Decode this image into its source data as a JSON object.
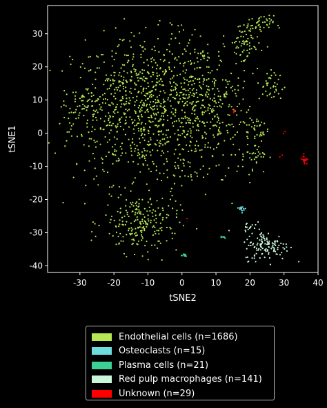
{
  "chart_data": {
    "type": "scatter",
    "xlabel": "tSNE2",
    "ylabel": "tSNE1",
    "xlim": [
      -39.5,
      40
    ],
    "ylim": [
      -42,
      38.5
    ],
    "xticks": [
      -30,
      -20,
      -10,
      0,
      10,
      20,
      30,
      40
    ],
    "yticks": [
      30,
      20,
      10,
      0,
      -10,
      -20,
      -30,
      -40
    ],
    "legend_position": "below",
    "series": [
      {
        "name": "Endothelial cells (n=1686)",
        "color": "#b5e853",
        "clusters": [
          {
            "cx": -10,
            "cy": 7,
            "sx": 11,
            "sy": 11,
            "n": 900
          },
          {
            "cx": -27,
            "cy": 8,
            "sx": 4,
            "sy": 4,
            "n": 80
          },
          {
            "cx": 5,
            "cy": 12,
            "sx": 5,
            "sy": 8,
            "n": 150
          },
          {
            "cx": 12,
            "cy": 5,
            "sx": 4,
            "sy": 8,
            "n": 100
          },
          {
            "cx": -12,
            "cy": -27,
            "sx": 5.5,
            "sy": 4.5,
            "n": 220
          },
          {
            "cx": 18,
            "cy": 27,
            "sx": 2.5,
            "sy": 3.5,
            "n": 70
          },
          {
            "cx": 23,
            "cy": 33,
            "sx": 2,
            "sy": 1.2,
            "n": 40
          },
          {
            "cx": 26,
            "cy": 14,
            "sx": 2,
            "sy": 2.5,
            "n": 40
          },
          {
            "cx": 21,
            "cy": -6,
            "sx": 2.2,
            "sy": 3,
            "n": 40
          },
          {
            "cx": 22,
            "cy": 1,
            "sx": 1.8,
            "sy": 2,
            "n": 30
          },
          {
            "cx": 3,
            "cy": -8,
            "sx": 4,
            "sy": 5,
            "n": 16
          }
        ]
      },
      {
        "name": "Osteoclasts (n=15)",
        "color": "#6edbdd",
        "clusters": [
          {
            "cx": 18,
            "cy": -22.8,
            "sx": 0.6,
            "sy": 0.5,
            "n": 15
          }
        ]
      },
      {
        "name": "Plasma cells (n=21)",
        "color": "#3dd094",
        "clusters": [
          {
            "cx": 0.5,
            "cy": -36.8,
            "sx": 0.6,
            "sy": 0.3,
            "n": 13
          },
          {
            "cx": 12,
            "cy": -31.3,
            "sx": 0.6,
            "sy": 0.2,
            "n": 8
          }
        ]
      },
      {
        "name": "Red pulp macrophages (n=141)",
        "color": "#cbf7d9",
        "clusters": [
          {
            "cx": 25,
            "cy": -34,
            "sx": 3.3,
            "sy": 2.2,
            "n": 125
          },
          {
            "cx": 20,
            "cy": -28,
            "sx": 1,
            "sy": 1.2,
            "n": 16
          }
        ]
      },
      {
        "name": "Unknown (n=29)",
        "color": "#ff0000",
        "clusters": [
          {
            "cx": 36,
            "cy": -8,
            "sx": 0.4,
            "sy": 0.7,
            "n": 20
          },
          {
            "cx": 15.5,
            "cy": 7,
            "sx": 0.5,
            "sy": 0.3,
            "n": 4
          },
          {
            "cx": 30,
            "cy": 0,
            "sx": 0.3,
            "sy": 0.3,
            "n": 2
          },
          {
            "cx": 29,
            "cy": -6.5,
            "sx": 0.3,
            "sy": 0.3,
            "n": 2
          },
          {
            "cx": 1.5,
            "cy": -25.5,
            "sx": 0.2,
            "sy": 0.2,
            "n": 1
          }
        ]
      }
    ]
  }
}
